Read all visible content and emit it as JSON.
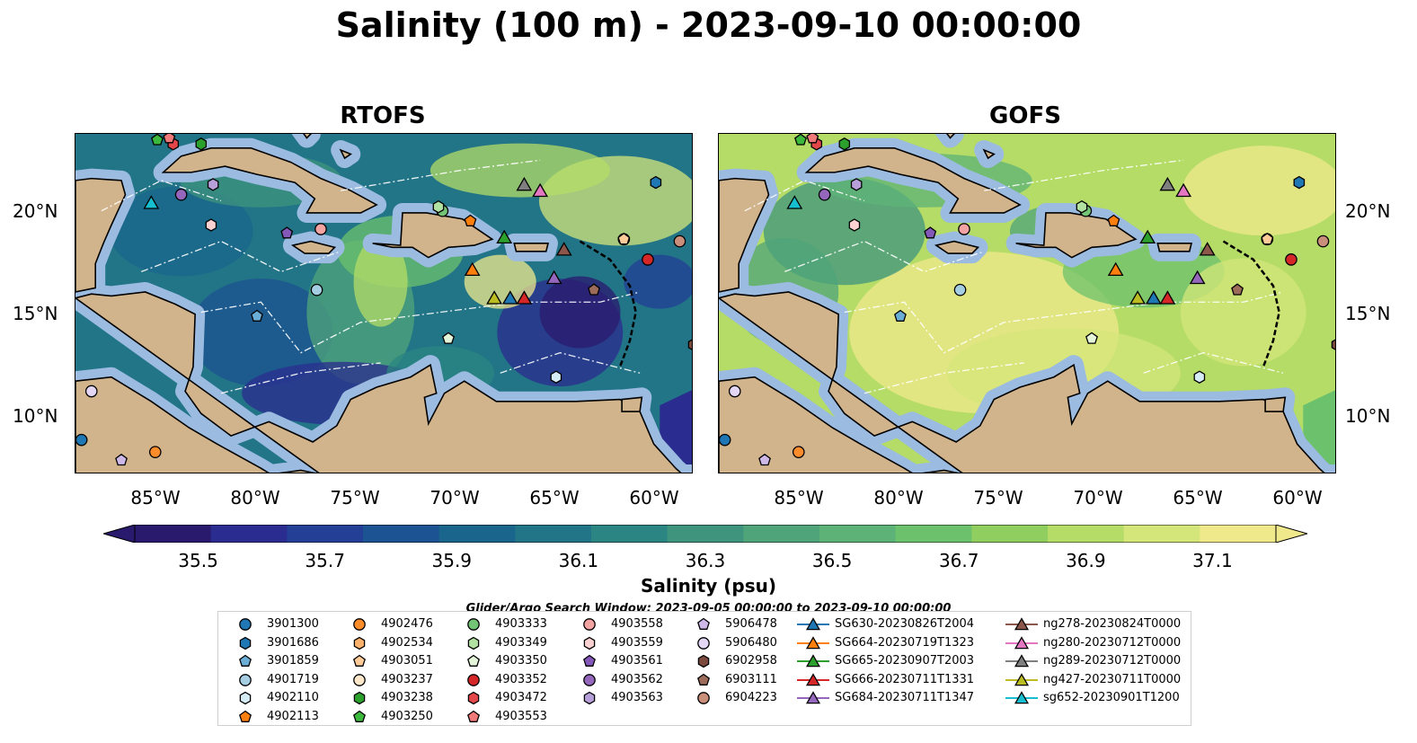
{
  "title": "Salinity (100 m) - 2023-09-10 00:00:00",
  "panels": [
    {
      "title": "RTOFS",
      "style": "rtofs"
    },
    {
      "title": "GOFS",
      "style": "gofs"
    }
  ],
  "lat_labels": [
    "20°N",
    "15°N",
    "10°N"
  ],
  "lon_labels": [
    "85°W",
    "80°W",
    "75°W",
    "70°W",
    "65°W",
    "60°W"
  ],
  "colorbar": {
    "label": "Salinity (psu)",
    "ticks": [
      "35.5",
      "35.7",
      "35.9",
      "36.1",
      "36.3",
      "36.5",
      "36.7",
      "36.9",
      "37.1"
    ],
    "colors": [
      "#2a1a6e",
      "#2b2c8f",
      "#233f96",
      "#1c5392",
      "#1a658c",
      "#227487",
      "#2b8582",
      "#3f947e",
      "#4fa47a",
      "#5db377",
      "#6cc16c",
      "#90cf5f",
      "#b4dc67",
      "#d4e57a",
      "#f0e98c"
    ]
  },
  "search_window": "Glider/Argo Search Window: 2023-09-05 00:00:00 to 2023-09-10 00:00:00",
  "legend": [
    {
      "label": "3901300",
      "marker": "circle",
      "color": "#1f77b4"
    },
    {
      "label": "3901686",
      "marker": "hexagon",
      "color": "#1f77b4"
    },
    {
      "label": "3901859",
      "marker": "pentagon",
      "color": "#6aaed6"
    },
    {
      "label": "4901719",
      "marker": "circle",
      "color": "#a6cee3"
    },
    {
      "label": "4902110",
      "marker": "hexagon",
      "color": "#d6ecf5"
    },
    {
      "label": "4902113",
      "marker": "pentagon",
      "color": "#ff7f0e"
    },
    {
      "label": "4902476",
      "marker": "circle",
      "color": "#ff8c2a"
    },
    {
      "label": "4902534",
      "marker": "hexagon",
      "color": "#ffb26b"
    },
    {
      "label": "4903051",
      "marker": "pentagon",
      "color": "#ffcc99"
    },
    {
      "label": "4903237",
      "marker": "circle",
      "color": "#ffe8c9"
    },
    {
      "label": "4903238",
      "marker": "hexagon",
      "color": "#2ca02c"
    },
    {
      "label": "4903250",
      "marker": "pentagon",
      "color": "#3cb83c"
    },
    {
      "label": "4903333",
      "marker": "circle",
      "color": "#74c476"
    },
    {
      "label": "4903349",
      "marker": "hexagon",
      "color": "#b2e2a2"
    },
    {
      "label": "4903350",
      "marker": "pentagon",
      "color": "#e5f5d9"
    },
    {
      "label": "4903352",
      "marker": "circle",
      "color": "#d62728"
    },
    {
      "label": "4903472",
      "marker": "hexagon",
      "color": "#e3474a"
    },
    {
      "label": "4903553",
      "marker": "pentagon",
      "color": "#f07a7a"
    },
    {
      "label": "4903558",
      "marker": "circle",
      "color": "#f4a3a3"
    },
    {
      "label": "4903559",
      "marker": "hexagon",
      "color": "#fbd1d1"
    },
    {
      "label": "4903561",
      "marker": "pentagon",
      "color": "#8358b8"
    },
    {
      "label": "4903562",
      "marker": "circle",
      "color": "#9467bd"
    },
    {
      "label": "4903563",
      "marker": "hexagon",
      "color": "#b79fda"
    },
    {
      "label": "5906478",
      "marker": "pentagon",
      "color": "#cdb8e8"
    },
    {
      "label": "5906480",
      "marker": "circle",
      "color": "#e4d6f5"
    },
    {
      "label": "6902958",
      "marker": "hexagon",
      "color": "#7b4a3c"
    },
    {
      "label": "6903111",
      "marker": "pentagon",
      "color": "#9c6b5a"
    },
    {
      "label": "6904223",
      "marker": "circle",
      "color": "#c98f7a"
    },
    {
      "label": "SG630-20230826T2004",
      "marker": "triangle",
      "color": "#1f77b4"
    },
    {
      "label": "SG664-20230719T1323",
      "marker": "triangle",
      "color": "#ff7f0e"
    },
    {
      "label": "SG665-20230907T2003",
      "marker": "triangle",
      "color": "#2ca02c"
    },
    {
      "label": "SG666-20230711T1331",
      "marker": "triangle",
      "color": "#d62728"
    },
    {
      "label": "SG684-20230711T1347",
      "marker": "triangle",
      "color": "#9467bd"
    },
    {
      "label": "ng278-20230824T0000",
      "marker": "triangle",
      "color": "#8c564b"
    },
    {
      "label": "ng280-20230712T0000",
      "marker": "triangle",
      "color": "#e377c2"
    },
    {
      "label": "ng289-20230712T0000",
      "marker": "triangle",
      "color": "#7f7f7f"
    },
    {
      "label": "ng427-20230711T0000",
      "marker": "triangle",
      "color": "#bcbd22"
    },
    {
      "label": "sg652-20230901T1200",
      "marker": "triangle",
      "color": "#17becf"
    }
  ],
  "observations": [
    {
      "label": "3901300",
      "lon": -89.0,
      "lat": 8.7
    },
    {
      "label": "3901686",
      "lon": -60.2,
      "lat": 21.4
    },
    {
      "label": "4901719",
      "lon": -77.2,
      "lat": 16.1
    },
    {
      "label": "4902110",
      "lon": -65.2,
      "lat": 11.8
    },
    {
      "label": "4902113",
      "lon": -69.5,
      "lat": 19.5
    },
    {
      "label": "4902476",
      "lon": -85.3,
      "lat": 8.1
    },
    {
      "label": "4903238",
      "lon": -83.0,
      "lat": 23.3
    },
    {
      "label": "4903250",
      "lon": -85.2,
      "lat": 23.5
    },
    {
      "label": "4903333",
      "lon": -70.9,
      "lat": 20.0
    },
    {
      "label": "4903349",
      "lon": -71.1,
      "lat": 20.2
    },
    {
      "label": "4903350",
      "lon": -70.6,
      "lat": 13.7
    },
    {
      "label": "4903352",
      "lon": -60.6,
      "lat": 17.6
    },
    {
      "label": "4903472",
      "lon": -84.4,
      "lat": 23.3
    },
    {
      "label": "4903553",
      "lon": -84.6,
      "lat": 23.6
    },
    {
      "label": "4903558",
      "lon": -77.0,
      "lat": 19.1
    },
    {
      "label": "4903559",
      "lon": -82.5,
      "lat": 19.3
    },
    {
      "label": "4903561",
      "lon": -78.7,
      "lat": 18.9
    },
    {
      "label": "4903562",
      "lon": -84.0,
      "lat": 20.8
    },
    {
      "label": "4903563",
      "lon": -82.4,
      "lat": 21.3
    },
    {
      "label": "5906478",
      "lon": -87.0,
      "lat": 7.7
    },
    {
      "label": "5906480",
      "lon": -88.5,
      "lat": 11.1
    },
    {
      "label": "6903111",
      "lon": -63.3,
      "lat": 16.1
    },
    {
      "label": "6904223",
      "lon": -59.0,
      "lat": 18.5
    },
    {
      "label": "6902958",
      "lon": -58.3,
      "lat": 13.4
    },
    {
      "label": "4903237",
      "lon": -61.8,
      "lat": 18.6
    },
    {
      "label": "4903051",
      "lon": -61.8,
      "lat": 18.6
    },
    {
      "label": "3901859",
      "lon": -80.2,
      "lat": 14.8
    },
    {
      "label": "sg652-20230901T1200",
      "lon": -85.5,
      "lat": 20.4
    },
    {
      "label": "SG664-20230719T1323",
      "lon": -69.4,
      "lat": 17.1
    },
    {
      "label": "SG665-20230907T2003",
      "lon": -67.8,
      "lat": 18.7
    },
    {
      "label": "ng278-20230824T0000",
      "lon": -64.8,
      "lat": 18.1
    },
    {
      "label": "ng289-20230712T0000",
      "lon": -66.8,
      "lat": 21.3
    },
    {
      "label": "ng280-20230712T0000",
      "lon": -66.0,
      "lat": 21.0
    },
    {
      "label": "SG684-20230711T1347",
      "lon": -65.3,
      "lat": 16.7
    },
    {
      "label": "ng427-20230711T0000",
      "lon": -68.3,
      "lat": 15.7
    },
    {
      "label": "SG630-20230826T2004",
      "lon": -67.5,
      "lat": 15.7
    },
    {
      "label": "SG666-20230711T1331",
      "lon": -66.8,
      "lat": 15.7
    }
  ]
}
